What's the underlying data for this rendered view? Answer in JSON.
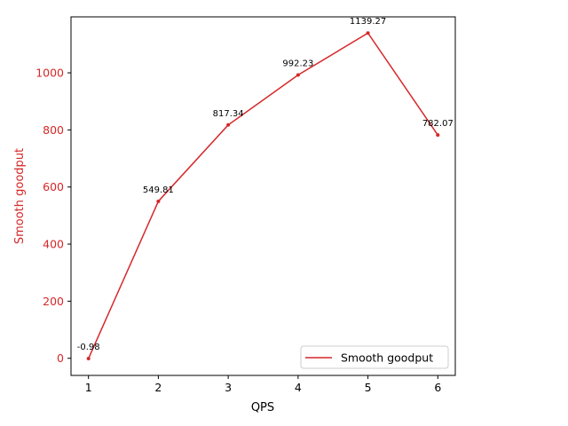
{
  "chart_data": {
    "type": "line",
    "xlabel": "QPS",
    "ylabel": "Smooth goodput",
    "x": [
      1,
      2,
      3,
      4,
      5,
      6
    ],
    "series": [
      {
        "name": "Smooth goodput",
        "values": [
          -0.98,
          549.81,
          817.34,
          992.23,
          1139.27,
          782.07
        ],
        "color": "#d62728"
      }
    ],
    "data_labels": [
      "-0.98",
      "549.81",
      "817.34",
      "992.23",
      "1139.27",
      "782.07"
    ],
    "x_ticks": [
      "1",
      "2",
      "3",
      "4",
      "5",
      "6"
    ],
    "y_ticks": [
      "0",
      "200",
      "400",
      "600",
      "800",
      "1000"
    ],
    "xlim": [
      0.75,
      6.25
    ],
    "ylim": [
      -60,
      1196
    ],
    "legend_position": "lower right",
    "grid": false,
    "ylabel_color": "#d62728",
    "ytick_color": "#d62728"
  }
}
